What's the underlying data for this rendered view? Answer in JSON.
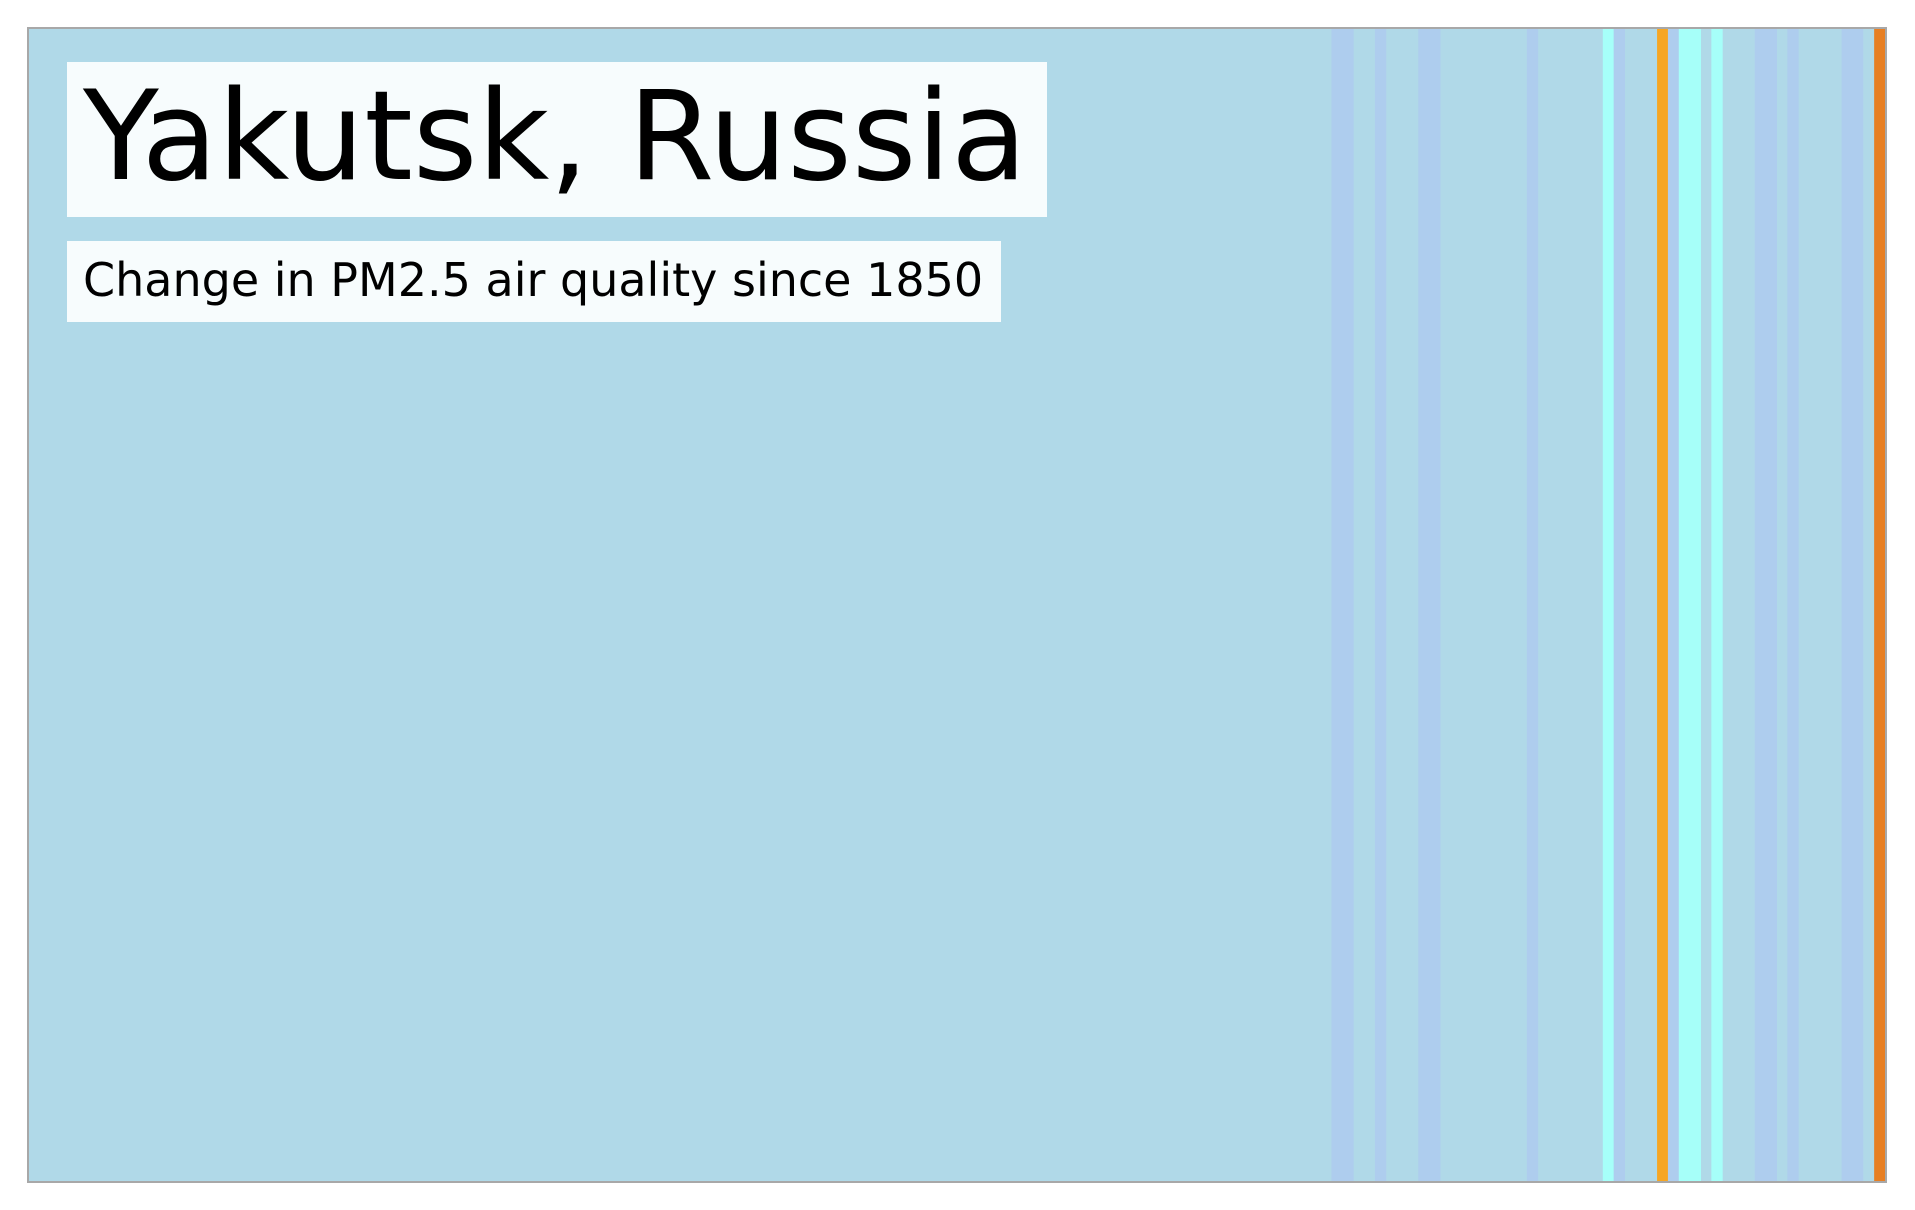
{
  "chart_data": {
    "type": "heatmap",
    "title": "Yakutsk, Russia",
    "subtitle": "Change in PM2.5 air quality since 1850",
    "xlabel": "",
    "ylabel": "",
    "grid": false,
    "legend": "none",
    "x": [
      1850,
      2021
    ],
    "base_color": "#b0d9e8",
    "colors": {
      "light_blue": "#b0d9e8",
      "periwinkle": "#aecdee",
      "cyan": "#a6fff9",
      "orange": "#f6a623",
      "dark_orange": "#e77f23"
    },
    "stripes": [
      {
        "from": 1850,
        "to": 1969,
        "color": "#b0d9e8"
      },
      {
        "from": 1970,
        "to": 1971,
        "color": "#aecdee"
      },
      {
        "from": 1974,
        "to": 1974,
        "color": "#aecdee"
      },
      {
        "from": 1978,
        "to": 1979,
        "color": "#aecdee"
      },
      {
        "from": 1988,
        "to": 1988,
        "color": "#aecdee"
      },
      {
        "from": 1995,
        "to": 1995,
        "color": "#a6fff9"
      },
      {
        "from": 1996,
        "to": 1996,
        "color": "#aecdee"
      },
      {
        "from": 2000,
        "to": 2000,
        "color": "#f6a623"
      },
      {
        "from": 2001,
        "to": 2001,
        "color": "#aecdee"
      },
      {
        "from": 2002,
        "to": 2003,
        "color": "#a6fff9"
      },
      {
        "from": 2005,
        "to": 2005,
        "color": "#a6fff9"
      },
      {
        "from": 2009,
        "to": 2010,
        "color": "#aecdee"
      },
      {
        "from": 2012,
        "to": 2012,
        "color": "#aecdee"
      },
      {
        "from": 2017,
        "to": 2018,
        "color": "#aecdee"
      },
      {
        "from": 2019,
        "to": 2019,
        "color": "#b0d9e8"
      },
      {
        "from": 2020,
        "to": 2020,
        "color": "#e77f23"
      }
    ]
  }
}
